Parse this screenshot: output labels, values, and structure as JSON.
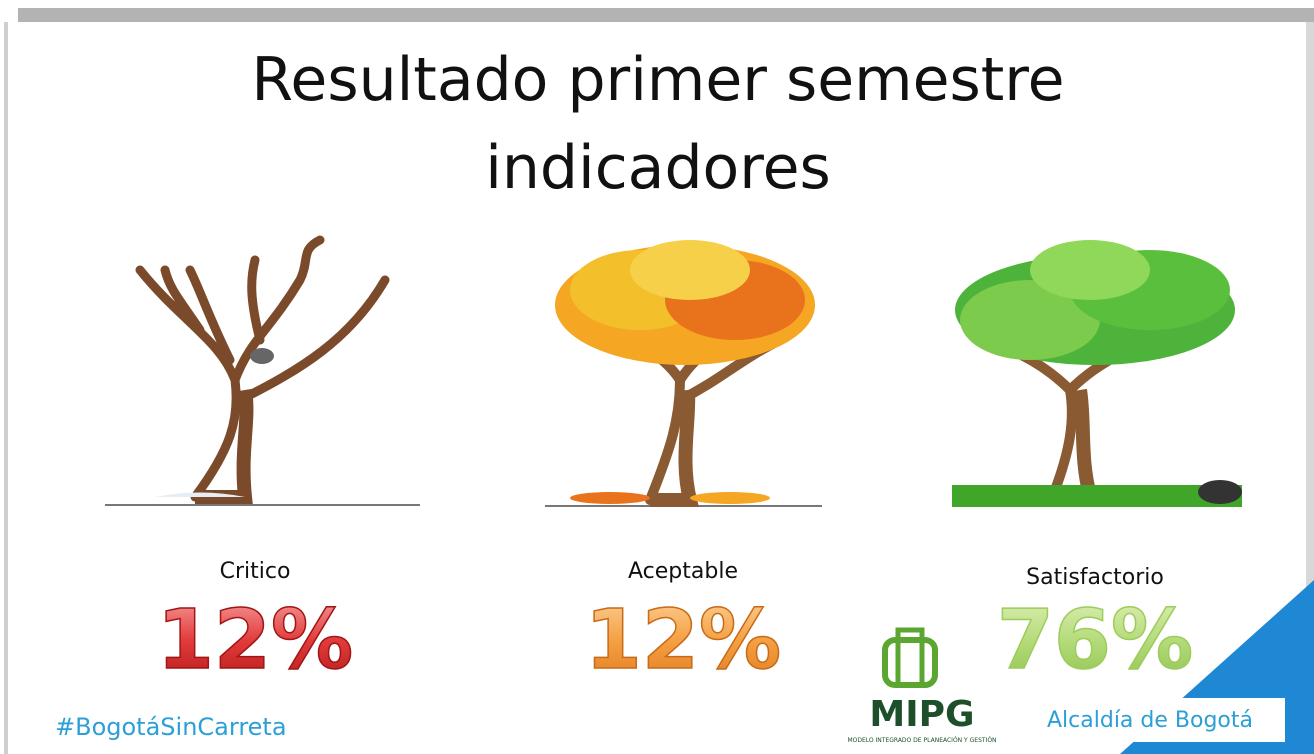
{
  "title": [
    "Resultado primer semestre",
    "indicadores"
  ],
  "items": [
    {
      "label": "Critico",
      "value": "12%"
    },
    {
      "label": "Aceptable",
      "value": "12%"
    },
    {
      "label": "Satisfactorio",
      "value": "76%"
    }
  ],
  "footer": {
    "hashtag": "#BogotáSinCarreta",
    "logo": "MIPG",
    "logo_subtitle": "MODELO INTEGRADO DE PLANEACIÓN Y GESTIÓN",
    "brand": "Alcaldía de Bogotá"
  }
}
